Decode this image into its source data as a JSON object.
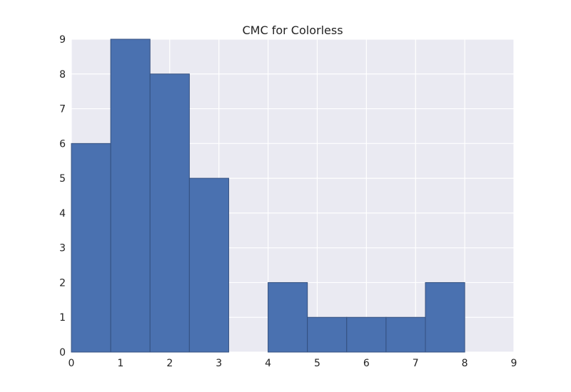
{
  "chart_data": {
    "type": "bar",
    "title": "CMC for Colorless",
    "xlabel": "",
    "ylabel": "",
    "xlim": [
      0,
      9
    ],
    "ylim": [
      0,
      9
    ],
    "xticks": [
      "0",
      "1",
      "2",
      "3",
      "4",
      "5",
      "6",
      "7",
      "8",
      "9"
    ],
    "yticks": [
      "0",
      "1",
      "2",
      "3",
      "4",
      "5",
      "6",
      "7",
      "8",
      "9"
    ],
    "bins": [
      {
        "x0": 0.0,
        "x1": 0.8,
        "value": 6
      },
      {
        "x0": 0.8,
        "x1": 1.6,
        "value": 9
      },
      {
        "x0": 1.6,
        "x1": 2.4,
        "value": 8
      },
      {
        "x0": 2.4,
        "x1": 3.2,
        "value": 5
      },
      {
        "x0": 3.2,
        "x1": 4.0,
        "value": 0
      },
      {
        "x0": 4.0,
        "x1": 4.8,
        "value": 2
      },
      {
        "x0": 4.8,
        "x1": 5.6,
        "value": 1
      },
      {
        "x0": 5.6,
        "x1": 6.4,
        "value": 1
      },
      {
        "x0": 6.4,
        "x1": 7.2,
        "value": 1
      },
      {
        "x0": 7.2,
        "x1": 8.0,
        "value": 2
      }
    ],
    "grid": true,
    "colors": {
      "bar": "#4a71b0",
      "bar_edge": "#34507f",
      "plot_background": "#eaeaf2",
      "grid": "#ffffff"
    }
  }
}
